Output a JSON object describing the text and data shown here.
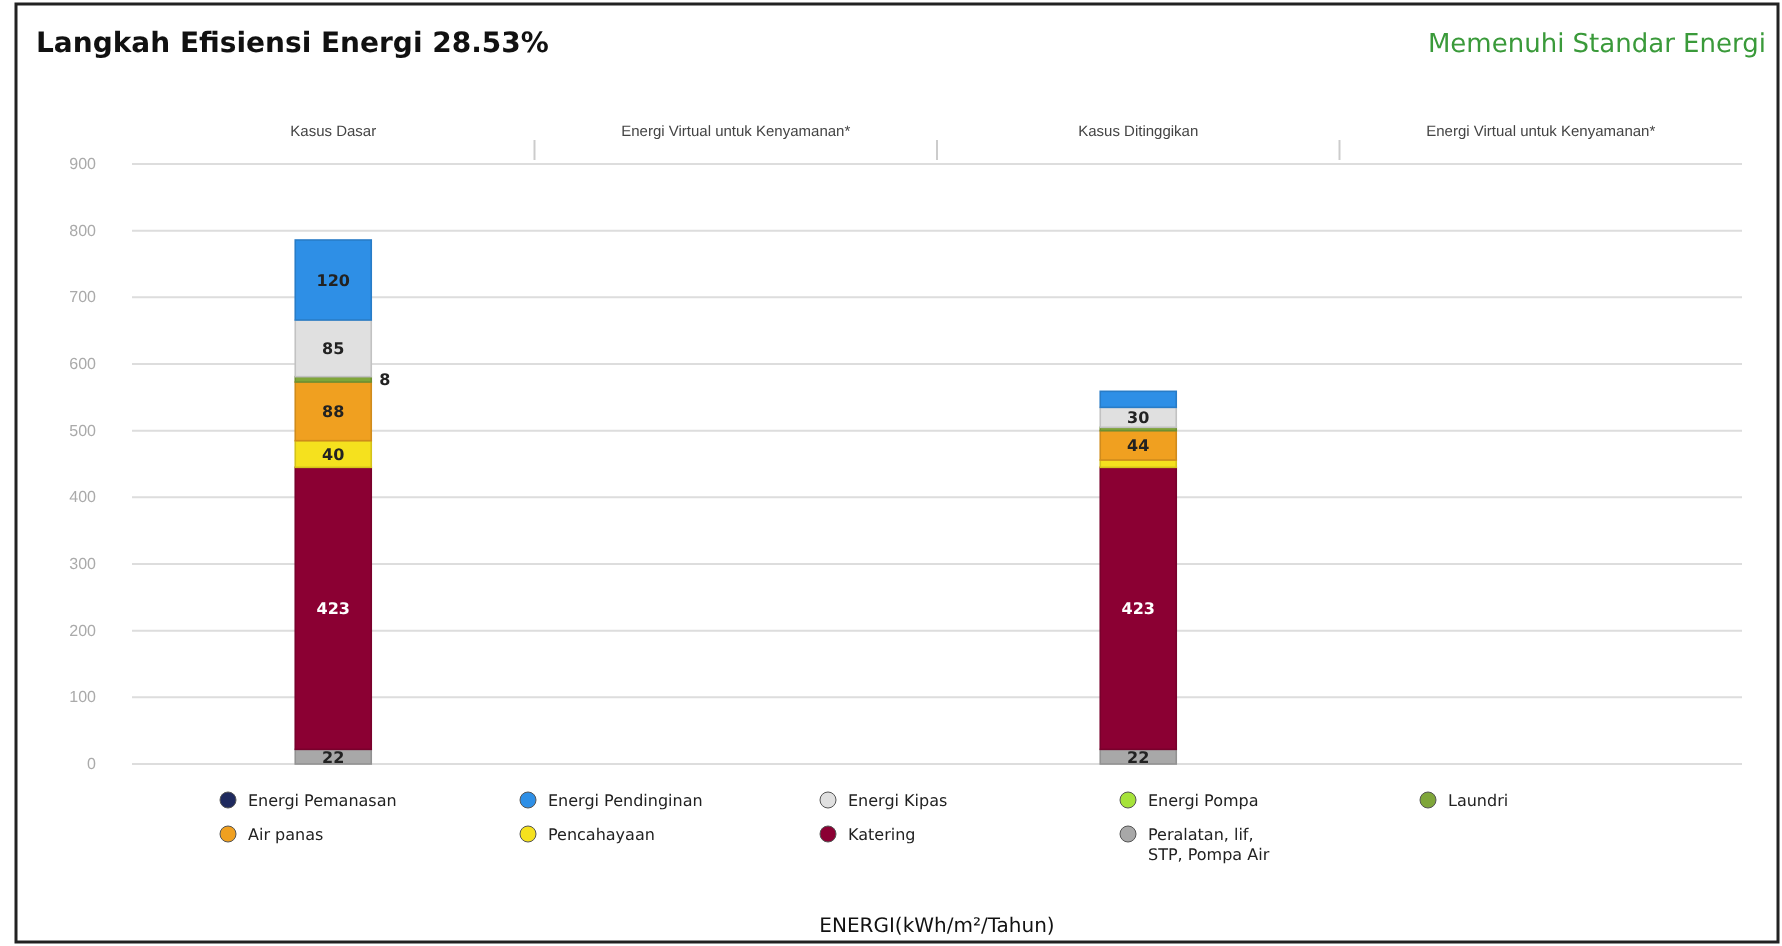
{
  "chart_data": {
    "type": "bar",
    "stacked": true,
    "title": "Langkah Efisiensi Energi  28.53%",
    "subtitle": "Memenuhi Standar Energi",
    "annotations": [
      "ENERGI(kWh/m²/Tahun)"
    ],
    "categories": [
      "Kasus Dasar",
      "Energi Virtual untuk Kenyamanan*",
      "Kasus Ditinggikan",
      "Energi Virtual untuk Kenyamanan*"
    ],
    "ylim": [
      0,
      900
    ],
    "yticks": [
      0,
      100,
      200,
      300,
      400,
      500,
      600,
      700,
      800,
      900
    ],
    "grid": "y",
    "legend": "bottom",
    "series": [
      {
        "name": "Peralatan, lif, STP, Pompa Air",
        "color": "#a8a8a8",
        "values": [
          22,
          null,
          22,
          null
        ],
        "value_labels": [
          "22",
          null,
          "22",
          null
        ]
      },
      {
        "name": "Katering",
        "color": "#8b0033",
        "values": [
          423,
          null,
          423,
          null
        ],
        "value_labels": [
          "423",
          null,
          "423",
          null
        ]
      },
      {
        "name": "Pencahayaan",
        "color": "#f5e11e",
        "values": [
          40,
          null,
          11,
          null
        ],
        "value_labels": [
          "40",
          null,
          null,
          null
        ]
      },
      {
        "name": "Air panas",
        "color": "#f0a020",
        "values": [
          88,
          null,
          44,
          null
        ],
        "value_labels": [
          "88",
          null,
          "44",
          null
        ]
      },
      {
        "name": "Laundri",
        "color": "#7fa63a",
        "values": [
          8,
          null,
          5,
          null
        ],
        "value_labels": [
          "8",
          null,
          null,
          null
        ]
      },
      {
        "name": "Energi Pompa",
        "color": "#a6e33a",
        "values": [
          0,
          null,
          0,
          null
        ]
      },
      {
        "name": "Energi Kipas",
        "color": "#e0e0e0",
        "values": [
          85,
          null,
          30,
          null
        ],
        "value_labels": [
          "85",
          null,
          "30",
          null
        ]
      },
      {
        "name": "Energi Pendinginan",
        "color": "#2e8fe6",
        "values": [
          120,
          null,
          24,
          null
        ],
        "value_labels": [
          "120",
          null,
          null,
          null
        ]
      },
      {
        "name": "Energi Pemanasan",
        "color": "#1f2a5e",
        "values": [
          0,
          null,
          0,
          null
        ]
      }
    ]
  }
}
